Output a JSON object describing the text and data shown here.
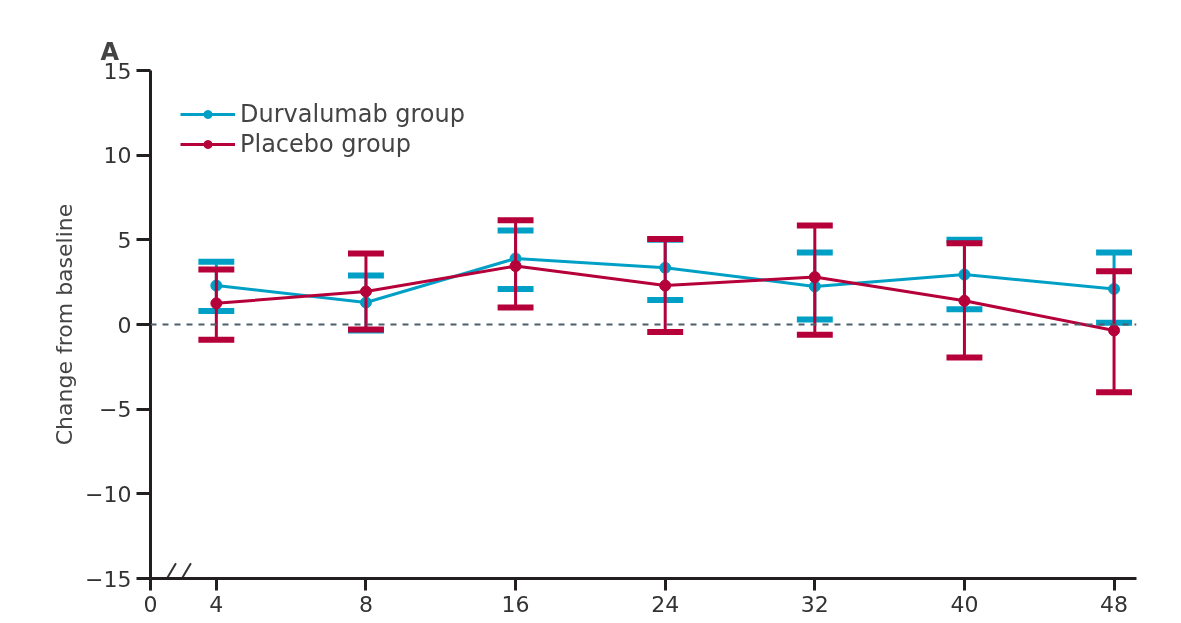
{
  "chart_data": {
    "type": "line",
    "title": "A",
    "ylabel": "Change from baseline",
    "categories": [
      "4",
      "8",
      "16",
      "24",
      "32",
      "40",
      "48"
    ],
    "series": [
      {
        "name": "Durvalumab group",
        "color": "#00a0c6",
        "values": [
          2.3,
          1.3,
          3.9,
          3.35,
          2.25,
          2.95,
          2.1
        ],
        "errors": [
          [
            0.8,
            3.7
          ],
          [
            -0.35,
            2.9
          ],
          [
            2.1,
            5.55
          ],
          [
            1.45,
            5.0
          ],
          [
            0.3,
            4.25
          ],
          [
            0.9,
            5.0
          ],
          [
            0.1,
            4.25
          ]
        ]
      },
      {
        "name": "Placebo group",
        "color": "#b5003a",
        "values": [
          1.25,
          1.95,
          3.45,
          2.3,
          2.8,
          1.4,
          -0.35
        ],
        "errors": [
          [
            -0.9,
            3.25
          ],
          [
            -0.3,
            4.2
          ],
          [
            1.0,
            6.15
          ],
          [
            -0.45,
            5.05
          ],
          [
            -0.6,
            5.85
          ],
          [
            -1.95,
            4.8
          ],
          [
            -4.0,
            3.15
          ]
        ]
      }
    ],
    "ylim": [
      -15,
      15
    ],
    "yticks": [
      -15,
      -10,
      -5,
      0,
      5,
      10,
      15
    ],
    "ref_lines": [
      {
        "axis": "y",
        "value": 0,
        "color": "#4a5f6b",
        "line_style": "dashed"
      }
    ],
    "annotations": [
      "0"
    ],
    "grid": false,
    "legend": "top left",
    "marker": "circle",
    "line_style": "solid"
  }
}
